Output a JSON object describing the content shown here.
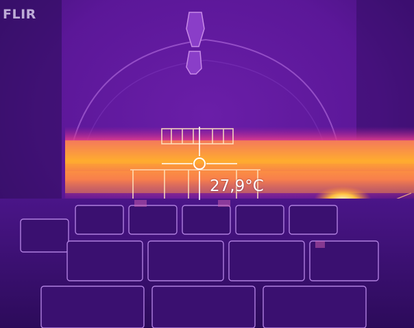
{
  "brand": {
    "logo_text": "FLIR"
  },
  "readout": {
    "temperature": "27,9°C"
  },
  "palette": {
    "cold": "#2a0a4a",
    "mid": "#7a1fb0",
    "warm": "#e8207a",
    "hot": "#ffb020",
    "white": "#fff2c0"
  }
}
